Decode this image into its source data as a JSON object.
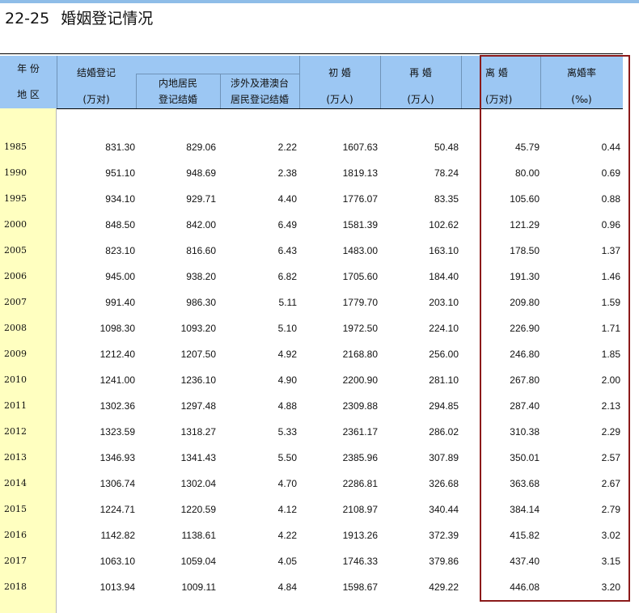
{
  "table_code": "22-25",
  "table_title": "婚姻登记情况",
  "header": {
    "region_col": {
      "line1": "年 份",
      "line2": "地 区"
    },
    "marriage_reg": {
      "label": "结婚登记",
      "unit": "(万对)"
    },
    "mainland": {
      "line1": "内地居民",
      "line2": "登记结婚"
    },
    "foreign": {
      "line1": "涉外及港澳台",
      "line2": "居民登记结婚"
    },
    "first_marriage": {
      "label": "初 婚",
      "unit": "(万人)"
    },
    "remarriage": {
      "label": "再 婚",
      "unit": "(万人)"
    },
    "divorce": {
      "label": "离 婚",
      "unit": "(万对)"
    },
    "divorce_rate": {
      "label": "离婚率",
      "unit": "(‰)"
    }
  },
  "rows": [
    {
      "year": "1985",
      "marriage": "831.30",
      "mainland": "829.06",
      "foreign": "2.22",
      "first": "1607.63",
      "remarriage": "50.48",
      "divorce": "45.79",
      "rate": "0.44"
    },
    {
      "year": "1990",
      "marriage": "951.10",
      "mainland": "948.69",
      "foreign": "2.38",
      "first": "1819.13",
      "remarriage": "78.24",
      "divorce": "80.00",
      "rate": "0.69"
    },
    {
      "year": "1995",
      "marriage": "934.10",
      "mainland": "929.71",
      "foreign": "4.40",
      "first": "1776.07",
      "remarriage": "83.35",
      "divorce": "105.60",
      "rate": "0.88"
    },
    {
      "year": "2000",
      "marriage": "848.50",
      "mainland": "842.00",
      "foreign": "6.49",
      "first": "1581.39",
      "remarriage": "102.62",
      "divorce": "121.29",
      "rate": "0.96"
    },
    {
      "year": "2005",
      "marriage": "823.10",
      "mainland": "816.60",
      "foreign": "6.43",
      "first": "1483.00",
      "remarriage": "163.10",
      "divorce": "178.50",
      "rate": "1.37"
    },
    {
      "year": "2006",
      "marriage": "945.00",
      "mainland": "938.20",
      "foreign": "6.82",
      "first": "1705.60",
      "remarriage": "184.40",
      "divorce": "191.30",
      "rate": "1.46"
    },
    {
      "year": "2007",
      "marriage": "991.40",
      "mainland": "986.30",
      "foreign": "5.11",
      "first": "1779.70",
      "remarriage": "203.10",
      "divorce": "209.80",
      "rate": "1.59"
    },
    {
      "year": "2008",
      "marriage": "1098.30",
      "mainland": "1093.20",
      "foreign": "5.10",
      "first": "1972.50",
      "remarriage": "224.10",
      "divorce": "226.90",
      "rate": "1.71"
    },
    {
      "year": "2009",
      "marriage": "1212.40",
      "mainland": "1207.50",
      "foreign": "4.92",
      "first": "2168.80",
      "remarriage": "256.00",
      "divorce": "246.80",
      "rate": "1.85"
    },
    {
      "year": "2010",
      "marriage": "1241.00",
      "mainland": "1236.10",
      "foreign": "4.90",
      "first": "2200.90",
      "remarriage": "281.10",
      "divorce": "267.80",
      "rate": "2.00"
    },
    {
      "year": "2011",
      "marriage": "1302.36",
      "mainland": "1297.48",
      "foreign": "4.88",
      "first": "2309.88",
      "remarriage": "294.85",
      "divorce": "287.40",
      "rate": "2.13"
    },
    {
      "year": "2012",
      "marriage": "1323.59",
      "mainland": "1318.27",
      "foreign": "5.33",
      "first": "2361.17",
      "remarriage": "286.02",
      "divorce": "310.38",
      "rate": "2.29"
    },
    {
      "year": "2013",
      "marriage": "1346.93",
      "mainland": "1341.43",
      "foreign": "5.50",
      "first": "2385.96",
      "remarriage": "307.89",
      "divorce": "350.01",
      "rate": "2.57"
    },
    {
      "year": "2014",
      "marriage": "1306.74",
      "mainland": "1302.04",
      "foreign": "4.70",
      "first": "2286.81",
      "remarriage": "326.68",
      "divorce": "363.68",
      "rate": "2.67"
    },
    {
      "year": "2015",
      "marriage": "1224.71",
      "mainland": "1220.59",
      "foreign": "4.12",
      "first": "2108.97",
      "remarriage": "340.44",
      "divorce": "384.14",
      "rate": "2.79"
    },
    {
      "year": "2016",
      "marriage": "1142.82",
      "mainland": "1138.61",
      "foreign": "4.22",
      "first": "1913.26",
      "remarriage": "372.39",
      "divorce": "415.82",
      "rate": "3.02"
    },
    {
      "year": "2017",
      "marriage": "1063.10",
      "mainland": "1059.04",
      "foreign": "4.05",
      "first": "1746.33",
      "remarriage": "379.86",
      "divorce": "437.40",
      "rate": "3.15"
    },
    {
      "year": "2018",
      "marriage": "1013.94",
      "mainland": "1009.11",
      "foreign": "4.84",
      "first": "1598.67",
      "remarriage": "429.22",
      "divorce": "446.08",
      "rate": "3.20"
    }
  ],
  "colors": {
    "header_bg": "#9cc7f3",
    "region_col_bg": "#ffffc0",
    "highlight_border": "#8b1a1a",
    "top_bar": "#8fbde8"
  }
}
